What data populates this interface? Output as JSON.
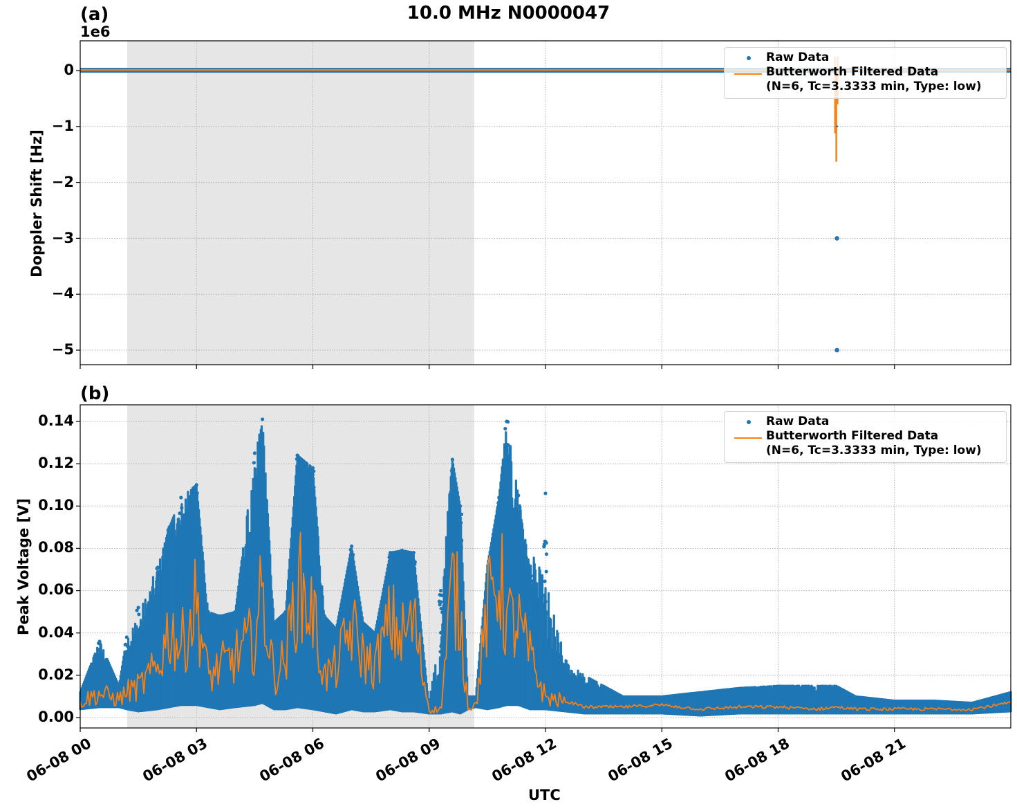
{
  "figure": {
    "title": "10.0 MHz N0000047",
    "xlabel": "UTC",
    "x_ticks": [
      "06-08 00",
      "06-08 03",
      "06-08 06",
      "06-08 09",
      "06-08 12",
      "06-08 15",
      "06-08 18",
      "06-08 21"
    ]
  },
  "panels": {
    "a": {
      "label": "(a)",
      "offset_text": "1e6",
      "ylabel": "Doppler Shift [Hz]",
      "y_ticks": [
        "0",
        "−1",
        "−2",
        "−3",
        "−4",
        "−5"
      ],
      "legend": {
        "raw": "Raw Data",
        "filtered": "Butterworth Filtered Data\n(N=6, Tc=3.3333 min, Type: low)"
      }
    },
    "b": {
      "label": "(b)",
      "ylabel": "Peak Voltage [V]",
      "y_ticks": [
        "0.14",
        "0.12",
        "0.10",
        "0.08",
        "0.06",
        "0.04",
        "0.02",
        "0.00"
      ],
      "legend": {
        "raw": "Raw Data",
        "filtered": "Butterworth Filtered Data\n(N=6, Tc=3.3333 min, Type: low)"
      }
    }
  },
  "colors": {
    "raw": "#1f77b4",
    "filtered": "#ff7f0e",
    "night_shade": "#e6e6e6",
    "grid": "#b0b0b0"
  },
  "chart_data": [
    {
      "type": "scatter",
      "title": "10.0 MHz N0000047",
      "panel": "(a)",
      "xlabel": "UTC",
      "ylabel": "Doppler Shift [Hz]",
      "y_scale_offset": "1e6",
      "xlim_hours": [
        0,
        24
      ],
      "ylim": [
        -5250000.0,
        520000.0
      ],
      "grid": true,
      "legend_position": "upper right",
      "shaded_interval_hours": [
        1.2,
        10.15
      ],
      "series": [
        {
          "name": "Raw Data",
          "kind": "points",
          "description": "Nearly constant at ~0 Hz across the whole day; outlier spike near 19.5 h",
          "outliers": [
            {
              "x_hour": 19.5,
              "y": -1000000
            },
            {
              "x_hour": 19.5,
              "y": -3000000
            },
            {
              "x_hour": 19.5,
              "y": -5000000
            }
          ],
          "baseline": 0
        },
        {
          "name": "Butterworth Filtered Data (N=6, Tc=3.3333 min, Type: low)",
          "kind": "line",
          "baseline": 0,
          "spike": {
            "x_hour": 19.5,
            "min_y": -1630000,
            "max_y": 250000
          }
        }
      ]
    },
    {
      "type": "scatter",
      "panel": "(b)",
      "xlabel": "UTC",
      "ylabel": "Peak Voltage [V]",
      "xlim_hours": [
        0,
        24
      ],
      "ylim": [
        -0.005,
        0.148
      ],
      "grid": true,
      "legend_position": "upper right",
      "shaded_interval_hours": [
        1.2,
        10.15
      ],
      "x": [
        0,
        0.5,
        1,
        1.2,
        1.5,
        2,
        2.3,
        2.6,
        3,
        3.3,
        3.6,
        4,
        4.5,
        4.7,
        5,
        5.3,
        5.6,
        6,
        6.3,
        6.6,
        7,
        7.3,
        7.6,
        8,
        8.3,
        8.6,
        9,
        9.3,
        9.6,
        9.8,
        10,
        10.2,
        10.5,
        10.8,
        11,
        11.3,
        11.6,
        12,
        12.5,
        13,
        13.5,
        14,
        15,
        16,
        17,
        18,
        19,
        19.5,
        20,
        21,
        22,
        23,
        24
      ],
      "series": [
        {
          "name": "Raw Data (upper envelope)",
          "values": [
            0.012,
            0.036,
            0.015,
            0.038,
            0.052,
            0.071,
            0.09,
            0.104,
            0.11,
            0.05,
            0.048,
            0.05,
            0.125,
            0.141,
            0.045,
            0.05,
            0.124,
            0.118,
            0.048,
            0.042,
            0.081,
            0.045,
            0.04,
            0.078,
            0.079,
            0.078,
            0.005,
            0.06,
            0.122,
            0.1,
            0.01,
            0.01,
            0.072,
            0.104,
            0.14,
            0.105,
            0.07,
            0.106,
            0.028,
            0.02,
            0.015,
            0.01,
            0.01,
            0.012,
            0.014,
            0.015,
            0.015,
            0.015,
            0.01,
            0.008,
            0.008,
            0.007,
            0.012
          ]
        },
        {
          "name": "Butterworth Filtered Data (N=6, Tc=3.3333 min, Type: low)",
          "values": [
            0.008,
            0.012,
            0.009,
            0.013,
            0.015,
            0.025,
            0.045,
            0.035,
            0.058,
            0.02,
            0.025,
            0.03,
            0.04,
            0.062,
            0.02,
            0.03,
            0.066,
            0.052,
            0.02,
            0.025,
            0.045,
            0.03,
            0.025,
            0.048,
            0.04,
            0.048,
            0.004,
            0.004,
            0.066,
            0.05,
            0.006,
            0.006,
            0.052,
            0.073,
            0.048,
            0.046,
            0.03,
            0.01,
            0.008,
            0.005,
            0.005,
            0.005,
            0.006,
            0.004,
            0.005,
            0.005,
            0.004,
            0.005,
            0.004,
            0.004,
            0.004,
            0.004,
            0.007
          ]
        },
        {
          "name": "Raw Data (lower envelope)",
          "values": [
            0.004,
            0.005,
            0.005,
            0.004,
            0.003,
            0.004,
            0.005,
            0.006,
            0.006,
            0.005,
            0.004,
            0.005,
            0.006,
            0.007,
            0.004,
            0.004,
            0.005,
            0.004,
            0.003,
            0.002,
            0.004,
            0.003,
            0.003,
            0.004,
            0.003,
            0.003,
            0.002,
            0.002,
            0.003,
            0.002,
            0.004,
            0.005,
            0.004,
            0.005,
            0.006,
            0.006,
            0.004,
            0.004,
            0.003,
            0.002,
            0.002,
            0.002,
            0.002,
            0.001,
            0.002,
            0.002,
            0.002,
            0.002,
            0.002,
            0.002,
            0.002,
            0.002,
            0.003
          ]
        }
      ]
    }
  ]
}
